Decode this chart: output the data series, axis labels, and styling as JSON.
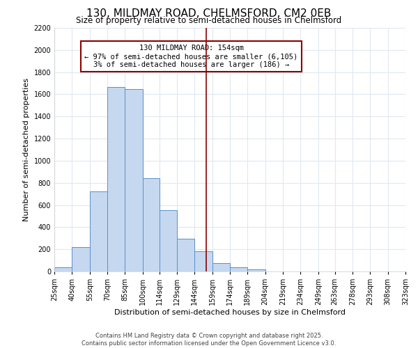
{
  "title": "130, MILDMAY ROAD, CHELMSFORD, CM2 0EB",
  "subtitle": "Size of property relative to semi-detached houses in Chelmsford",
  "xlabel": "Distribution of semi-detached houses by size in Chelmsford",
  "ylabel": "Number of semi-detached properties",
  "bin_labels": [
    "25sqm",
    "40sqm",
    "55sqm",
    "70sqm",
    "85sqm",
    "100sqm",
    "114sqm",
    "129sqm",
    "144sqm",
    "159sqm",
    "174sqm",
    "189sqm",
    "204sqm",
    "219sqm",
    "234sqm",
    "249sqm",
    "263sqm",
    "278sqm",
    "293sqm",
    "308sqm",
    "323sqm"
  ],
  "bin_edges": [
    25,
    40,
    55,
    70,
    85,
    100,
    114,
    129,
    144,
    159,
    174,
    189,
    204,
    219,
    234,
    249,
    263,
    278,
    293,
    308,
    323
  ],
  "bar_heights": [
    40,
    220,
    725,
    1665,
    1650,
    840,
    555,
    295,
    180,
    75,
    35,
    20,
    0,
    0,
    0,
    0,
    0,
    0,
    0,
    0
  ],
  "bar_color": "#c5d8f0",
  "bar_edge_color": "#5b8fc9",
  "vline_color": "#8b0000",
  "vline_x": 154,
  "annotation_title": "130 MILDMAY ROAD: 154sqm",
  "annotation_line1": "← 97% of semi-detached houses are smaller (6,105)",
  "annotation_line2": "3% of semi-detached houses are larger (186) →",
  "annotation_box_color": "#8b0000",
  "ylim": [
    0,
    2200
  ],
  "yticks": [
    0,
    200,
    400,
    600,
    800,
    1000,
    1200,
    1400,
    1600,
    1800,
    2000,
    2200
  ],
  "footnote1": "Contains HM Land Registry data © Crown copyright and database right 2025.",
  "footnote2": "Contains public sector information licensed under the Open Government Licence v3.0.",
  "background_color": "#ffffff",
  "grid_color": "#e0e8f0",
  "title_fontsize": 11,
  "subtitle_fontsize": 8.5,
  "axis_label_fontsize": 8,
  "tick_fontsize": 7,
  "annotation_fontsize": 7.5,
  "footnote_fontsize": 6
}
